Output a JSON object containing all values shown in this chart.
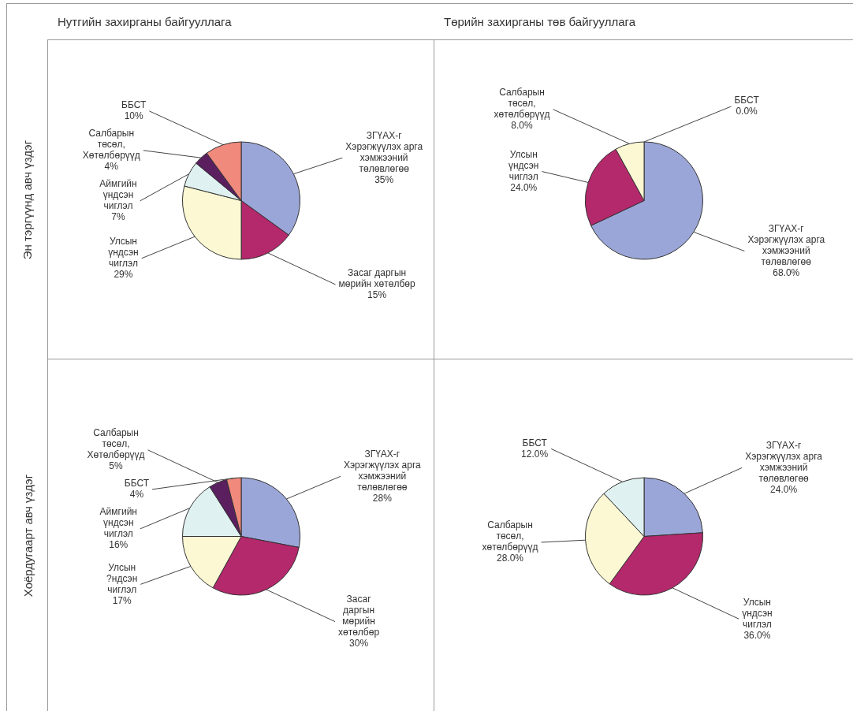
{
  "chart_data": [
    {
      "type": "pie",
      "title": "Нутгийн захирганы байгууллага",
      "ylabel": "Эн тэргүүнд авч үздэг",
      "categories": [
        "ЗГҮАХ-г\nХэрэгжүүлэх арга\nхэмжээний\nтөлөвлөгөө",
        "Засаг даргын\nмөрийн хөтөлбөр",
        "Улсын\nүндсэн\nчиглэл",
        "Аймгийн\nүндсэн\nчиглэл",
        "Салбарын\nтөсөл,\nХөтөлбөрүүд",
        "ББСТ"
      ],
      "values": [
        35,
        15,
        29,
        7,
        4,
        10
      ],
      "value_labels": [
        "35%",
        "15%",
        "29%",
        "7%",
        "4%",
        "10%"
      ],
      "colors": [
        "#9ba6d8",
        "#b4286c",
        "#fbf8d3",
        "#dff1f0",
        "#5b1f5f",
        "#f08a7c"
      ]
    },
    {
      "type": "pie",
      "title": "Төрийн захирганы төв байгууллага",
      "categories": [
        "ЗГҮАХ-г\nХэрэгжүүлэх арга\nхэмжээний\nтөлөвлөгөө",
        "Улсын\nүндсэн\nчиглэл",
        "Салбарын\nтөсөл,\nхөтөлбөрүүд",
        "ББСТ"
      ],
      "values": [
        68,
        24,
        8,
        0
      ],
      "value_labels": [
        "68.0%",
        "24.0%",
        "8.0%",
        "0.0%"
      ],
      "colors": [
        "#9ba6d8",
        "#b4286c",
        "#fbf8d3",
        "#dff1f0"
      ]
    },
    {
      "type": "pie",
      "ylabel": "Хоёрдугаарт авч үздэг",
      "categories": [
        "ЗГҮАХ-г\nХэрэгжүүлэх арга\nхэмжээний\nтөлөвлөгөө",
        "Засаг\nдаргын\nмөрийн\nхөтөлбөр",
        "Улсын\n?ндсэн\nчиглэл",
        "Аймгийн\nүндсэн\nчиглэл",
        "Салбарын\nтөсөл,\nХөтөлбөрүүд",
        "ББСТ"
      ],
      "values": [
        28,
        30,
        17,
        16,
        5,
        4
      ],
      "value_labels": [
        "28%",
        "30%",
        "17%",
        "16%",
        "5%",
        "4%"
      ],
      "colors": [
        "#9ba6d8",
        "#b4286c",
        "#fbf8d3",
        "#dff1f0",
        "#5b1f5f",
        "#f08a7c"
      ]
    },
    {
      "type": "pie",
      "categories": [
        "ЗГҮАХ-г\nХэрэгжүүлэх арга\nхэмжээний\nтөлөвлөгөө",
        "Улсын\nүндсэн\nчиглэл",
        "Салбарын\nтөсөл,\nхөтөлбөрүүд",
        "ББСТ"
      ],
      "values": [
        24,
        36,
        28,
        12
      ],
      "value_labels": [
        "24.0%",
        "36.0%",
        "28.0%",
        "12.0%"
      ],
      "colors": [
        "#9ba6d8",
        "#b4286c",
        "#fbf8d3",
        "#dff1f0"
      ]
    }
  ]
}
